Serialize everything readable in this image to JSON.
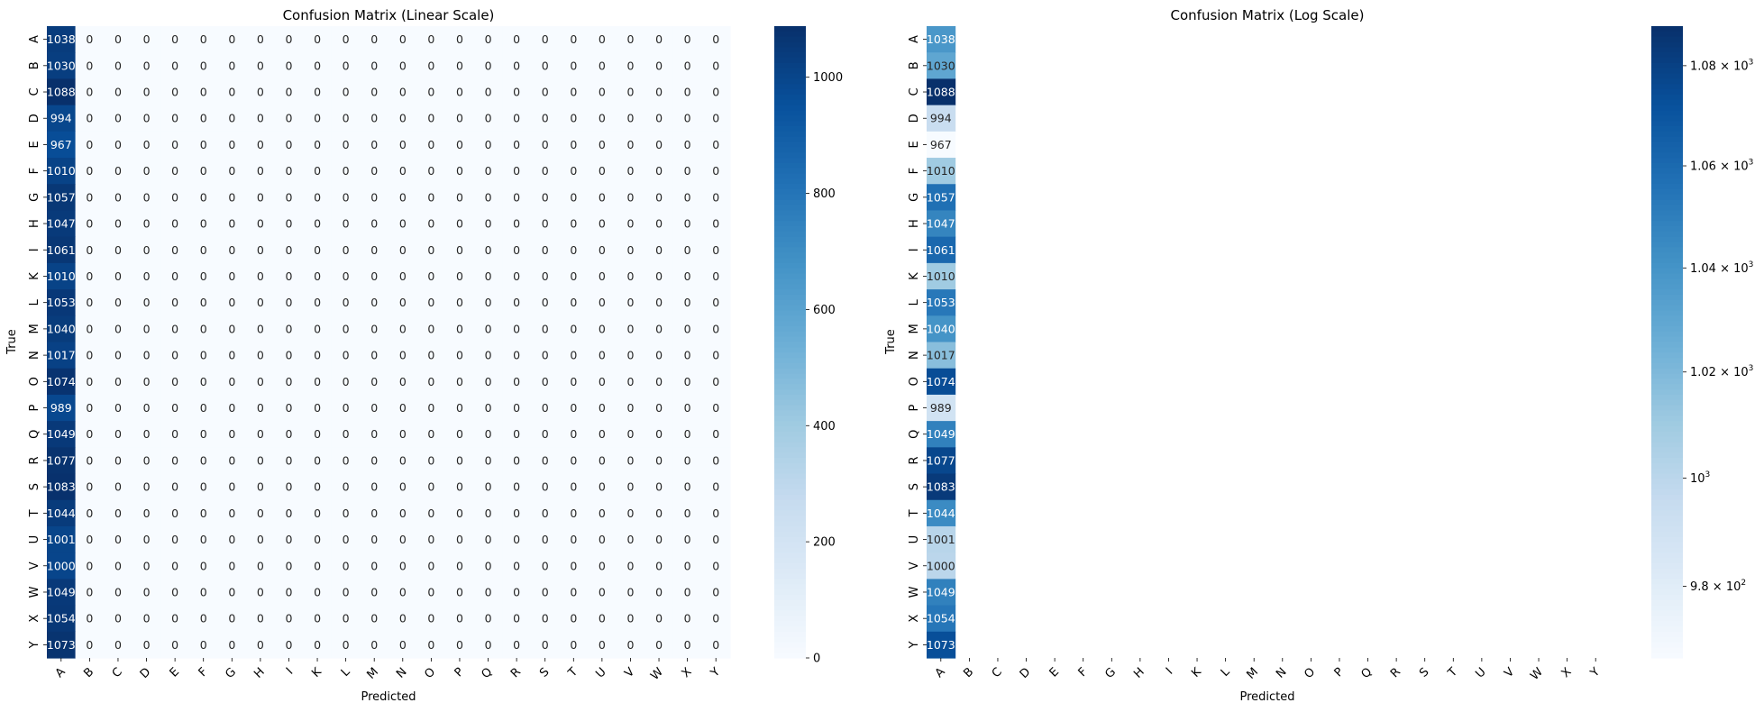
{
  "chart_data": [
    {
      "type": "heatmap",
      "title": "Confusion Matrix (Linear Scale)",
      "xlabel": "Predicted",
      "ylabel": "True",
      "x_categories": [
        "A",
        "B",
        "C",
        "D",
        "E",
        "F",
        "G",
        "H",
        "I",
        "K",
        "L",
        "M",
        "N",
        "O",
        "P",
        "Q",
        "R",
        "S",
        "T",
        "U",
        "V",
        "W",
        "X",
        "Y"
      ],
      "y_categories": [
        "A",
        "B",
        "C",
        "D",
        "E",
        "F",
        "G",
        "H",
        "I",
        "K",
        "L",
        "M",
        "N",
        "O",
        "P",
        "Q",
        "R",
        "S",
        "T",
        "U",
        "V",
        "W",
        "X",
        "Y"
      ],
      "first_column_values": [
        1038,
        1030,
        1088,
        994,
        967,
        1010,
        1057,
        1047,
        1061,
        1010,
        1053,
        1040,
        1017,
        1074,
        989,
        1049,
        1077,
        1083,
        1044,
        1001,
        1000,
        1049,
        1054,
        1073
      ],
      "other_cells_value": 0,
      "show_zero_annotations": true,
      "colormap": "Blues",
      "color_scale": "linear",
      "colorbar": {
        "min": 0,
        "max": 1088,
        "ticks": [
          0,
          200,
          400,
          600,
          800,
          1000
        ],
        "tick_labels": [
          "0",
          "200",
          "400",
          "600",
          "800",
          "1000"
        ]
      }
    },
    {
      "type": "heatmap",
      "title": "Confusion Matrix (Log Scale)",
      "xlabel": "Predicted",
      "ylabel": "True",
      "x_categories": [
        "A",
        "B",
        "C",
        "D",
        "E",
        "F",
        "G",
        "H",
        "I",
        "K",
        "L",
        "M",
        "N",
        "O",
        "P",
        "Q",
        "R",
        "S",
        "T",
        "U",
        "V",
        "W",
        "X",
        "Y"
      ],
      "y_categories": [
        "A",
        "B",
        "C",
        "D",
        "E",
        "F",
        "G",
        "H",
        "I",
        "K",
        "L",
        "M",
        "N",
        "O",
        "P",
        "Q",
        "R",
        "S",
        "T",
        "U",
        "V",
        "W",
        "X",
        "Y"
      ],
      "first_column_values": [
        1038,
        1030,
        1088,
        994,
        967,
        1010,
        1057,
        1047,
        1061,
        1010,
        1053,
        1040,
        1017,
        1074,
        989,
        1049,
        1077,
        1083,
        1044,
        1001,
        1000,
        1049,
        1054,
        1073
      ],
      "other_cells_value": 0,
      "show_zero_annotations": false,
      "colormap": "Blues",
      "color_scale": "log",
      "colorbar": {
        "min": 967,
        "max": 1088,
        "ticks": [
          980,
          1000,
          1020,
          1040,
          1060,
          1080
        ],
        "tick_labels": [
          {
            "mantissa": "9.8",
            "sep": " × ",
            "base": "10",
            "exp": "2"
          },
          {
            "mantissa": "",
            "sep": "",
            "base": "10",
            "exp": "3"
          },
          {
            "mantissa": "1.02",
            "sep": " × ",
            "base": "10",
            "exp": "3"
          },
          {
            "mantissa": "1.04",
            "sep": " × ",
            "base": "10",
            "exp": "3"
          },
          {
            "mantissa": "1.06",
            "sep": " × ",
            "base": "10",
            "exp": "3"
          },
          {
            "mantissa": "1.08",
            "sep": " × ",
            "base": "10",
            "exp": "3"
          }
        ]
      }
    }
  ]
}
